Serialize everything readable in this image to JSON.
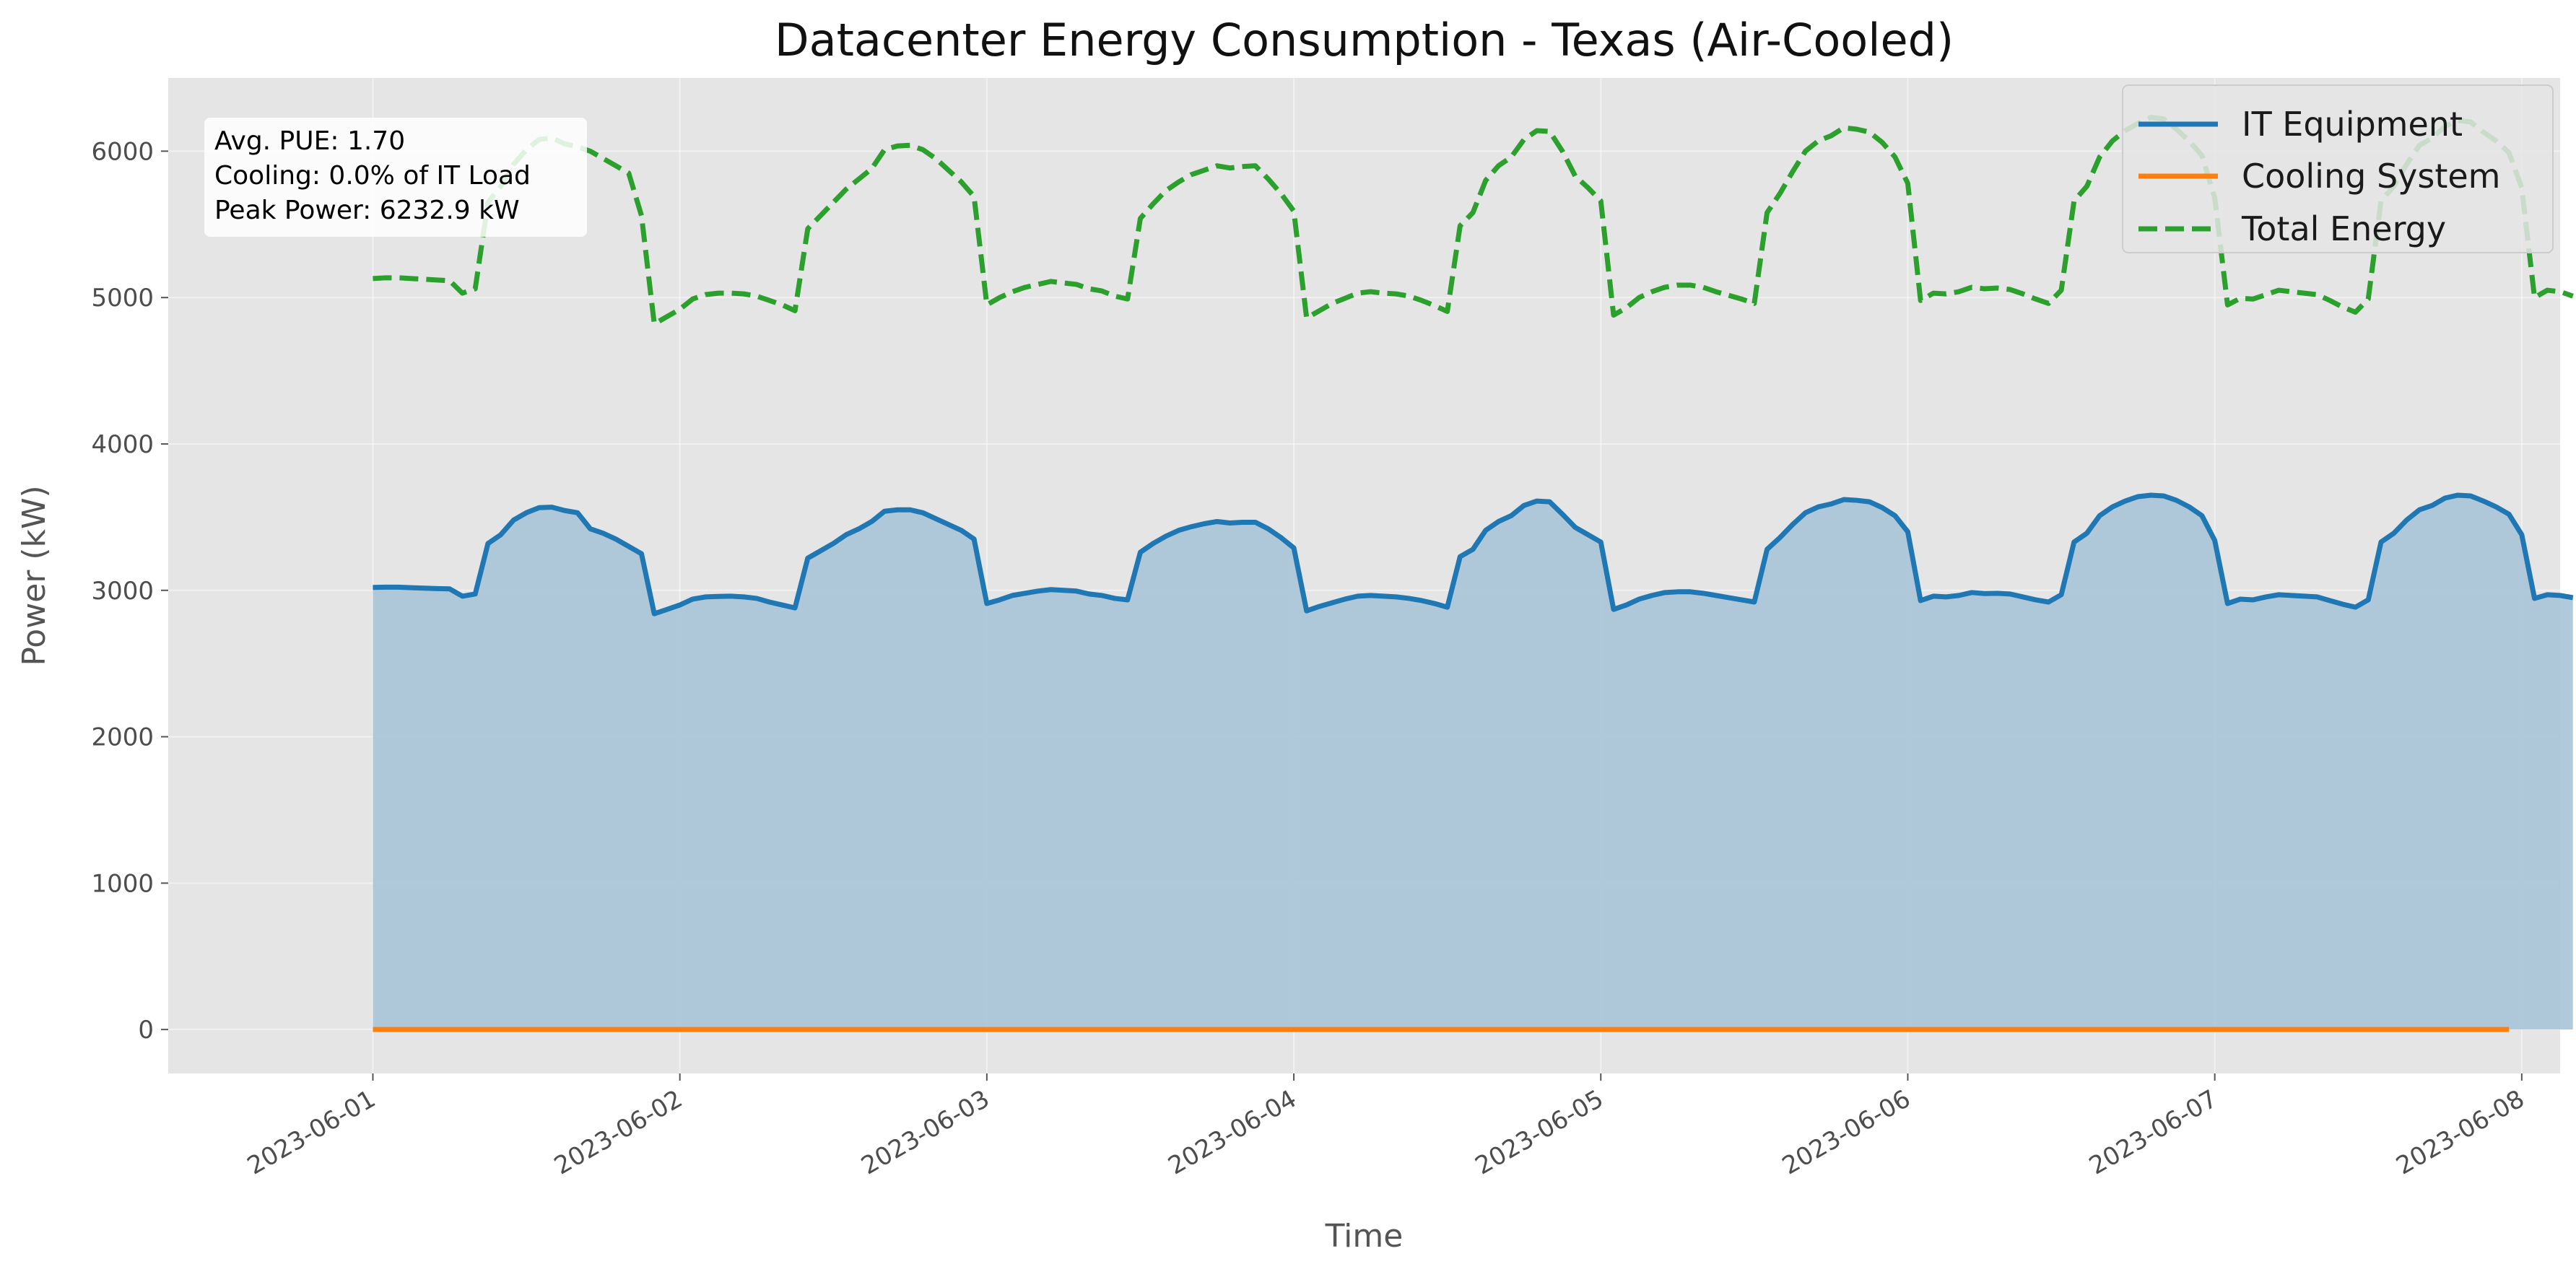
{
  "chart_data": {
    "type": "line",
    "title": "Datacenter Energy Consumption - Texas (Air-Cooled)",
    "xlabel": "Time",
    "ylabel": "Power (kW)",
    "xlim": [
      "2023-05-31T08:00",
      "2023-06-08T03:00"
    ],
    "ylim": [
      -300,
      6500
    ],
    "x_ticks": [
      "2023-06-01",
      "2023-06-02",
      "2023-06-03",
      "2023-06-04",
      "2023-06-05",
      "2023-06-06",
      "2023-06-07",
      "2023-06-08"
    ],
    "y_ticks": [
      0,
      1000,
      2000,
      3000,
      4000,
      5000,
      6000
    ],
    "grid": true,
    "legend_position": "top-right",
    "x_start": "2023-06-01T00:00",
    "x_interval_hours": 1,
    "colors": {
      "it": "#1f77b4",
      "cooling": "#ff7f0e",
      "total": "#2ca02c",
      "fill": "#a8c4d7",
      "background": "#e5e5e5"
    },
    "annotation": [
      "Avg. PUE: 1.70",
      "Cooling: 0.0% of IT Load",
      "Peak Power: 6232.9 kW"
    ],
    "series": [
      {
        "name": "IT Equipment",
        "style": "solid",
        "filled": true,
        "values": [
          3020,
          3022,
          3022,
          3018,
          3015,
          3012,
          3010,
          2960,
          2975,
          3320,
          3380,
          3480,
          3530,
          3565,
          3568,
          3545,
          3530,
          3420,
          3390,
          3350,
          3300,
          3250,
          2840,
          2870,
          2900,
          2940,
          2955,
          2958,
          2960,
          2955,
          2945,
          2920,
          2900,
          2880,
          3220,
          3270,
          3320,
          3380,
          3420,
          3470,
          3540,
          3550,
          3550,
          3530,
          3490,
          3450,
          3410,
          3350,
          2910,
          2935,
          2965,
          2980,
          2995,
          3005,
          3000,
          2995,
          2975,
          2965,
          2945,
          2935,
          3260,
          3320,
          3370,
          3410,
          3435,
          3455,
          3470,
          3460,
          3465,
          3465,
          3420,
          3360,
          3290,
          2860,
          2890,
          2915,
          2940,
          2960,
          2965,
          2960,
          2955,
          2945,
          2930,
          2910,
          2885,
          3230,
          3280,
          3410,
          3470,
          3510,
          3580,
          3610,
          3605,
          3520,
          3430,
          3380,
          3330,
          2870,
          2900,
          2940,
          2965,
          2985,
          2990,
          2990,
          2980,
          2965,
          2950,
          2935,
          2920,
          3280,
          3360,
          3450,
          3530,
          3570,
          3590,
          3620,
          3615,
          3605,
          3565,
          3510,
          3400,
          2930,
          2960,
          2955,
          2965,
          2985,
          2978,
          2980,
          2975,
          2955,
          2935,
          2920,
          2970,
          3330,
          3390,
          3510,
          3570,
          3610,
          3640,
          3650,
          3645,
          3615,
          3570,
          3510,
          3340,
          2910,
          2940,
          2935,
          2955,
          2970,
          2965,
          2960,
          2955,
          2930,
          2905,
          2885,
          2935,
          3330,
          3390,
          3480,
          3550,
          3580,
          3630,
          3650,
          3645,
          3610,
          3570,
          3520,
          3380,
          2945,
          2970,
          2965,
          2950
        ],
        "color": "#1f77b4"
      },
      {
        "name": "Cooling System",
        "style": "solid",
        "values": [
          0,
          0,
          0,
          0,
          0,
          0,
          0,
          0,
          0,
          0,
          0,
          0,
          0,
          0,
          0,
          0,
          0,
          0,
          0,
          0,
          0,
          0,
          0,
          0,
          0,
          0,
          0,
          0,
          0,
          0,
          0,
          0,
          0,
          0,
          0,
          0,
          0,
          0,
          0,
          0,
          0,
          0,
          0,
          0,
          0,
          0,
          0,
          0,
          0,
          0,
          0,
          0,
          0,
          0,
          0,
          0,
          0,
          0,
          0,
          0,
          0,
          0,
          0,
          0,
          0,
          0,
          0,
          0,
          0,
          0,
          0,
          0,
          0,
          0,
          0,
          0,
          0,
          0,
          0,
          0,
          0,
          0,
          0,
          0,
          0,
          0,
          0,
          0,
          0,
          0,
          0,
          0,
          0,
          0,
          0,
          0,
          0,
          0,
          0,
          0,
          0,
          0,
          0,
          0,
          0,
          0,
          0,
          0,
          0,
          0,
          0,
          0,
          0,
          0,
          0,
          0,
          0,
          0,
          0,
          0,
          0,
          0,
          0,
          0,
          0,
          0,
          0,
          0,
          0,
          0,
          0,
          0,
          0,
          0,
          0,
          0,
          0,
          0,
          0,
          0,
          0,
          0,
          0,
          0,
          0,
          0,
          0,
          0,
          0,
          0,
          0,
          0,
          0,
          0,
          0,
          0,
          0,
          0,
          0,
          0,
          0,
          0,
          0,
          0,
          0,
          0,
          0,
          0
        ],
        "color": "#ff7f0e"
      },
      {
        "name": "Total Energy",
        "style": "dashed",
        "values": [
          5130,
          5135,
          5135,
          5130,
          5125,
          5120,
          5115,
          5030,
          5060,
          5650,
          5760,
          5910,
          6010,
          6080,
          6090,
          6050,
          6030,
          6000,
          5950,
          5900,
          5850,
          5560,
          4820,
          4870,
          4920,
          4990,
          5020,
          5030,
          5030,
          5025,
          5010,
          4980,
          4950,
          4910,
          5470,
          5560,
          5650,
          5740,
          5810,
          5880,
          6010,
          6035,
          6040,
          6010,
          5950,
          5870,
          5790,
          5690,
          4950,
          5000,
          5040,
          5070,
          5090,
          5110,
          5100,
          5090,
          5060,
          5045,
          5010,
          4990,
          5540,
          5640,
          5730,
          5790,
          5840,
          5870,
          5900,
          5885,
          5895,
          5900,
          5810,
          5710,
          5590,
          4860,
          4910,
          4960,
          4995,
          5030,
          5040,
          5030,
          5025,
          5010,
          4980,
          4945,
          4905,
          5490,
          5580,
          5800,
          5900,
          5960,
          6080,
          6140,
          6135,
          6000,
          5830,
          5750,
          5660,
          4880,
          4930,
          5000,
          5040,
          5070,
          5085,
          5085,
          5070,
          5040,
          5015,
          4990,
          4960,
          5580,
          5710,
          5860,
          6000,
          6070,
          6105,
          6160,
          6150,
          6130,
          6060,
          5960,
          5780,
          4980,
          5030,
          5025,
          5040,
          5070,
          5060,
          5065,
          5055,
          5025,
          4990,
          4960,
          5050,
          5660,
          5760,
          5960,
          6070,
          6140,
          6190,
          6230,
          6220,
          6150,
          6070,
          5970,
          5680,
          4950,
          4995,
          4990,
          5020,
          5050,
          5040,
          5030,
          5020,
          4980,
          4935,
          4900,
          4990,
          5660,
          5760,
          5910,
          6040,
          6090,
          6170,
          6210,
          6200,
          6130,
          6070,
          5990,
          5750,
          5000,
          5050,
          5040,
          5010
        ],
        "color": "#2ca02c"
      }
    ]
  }
}
